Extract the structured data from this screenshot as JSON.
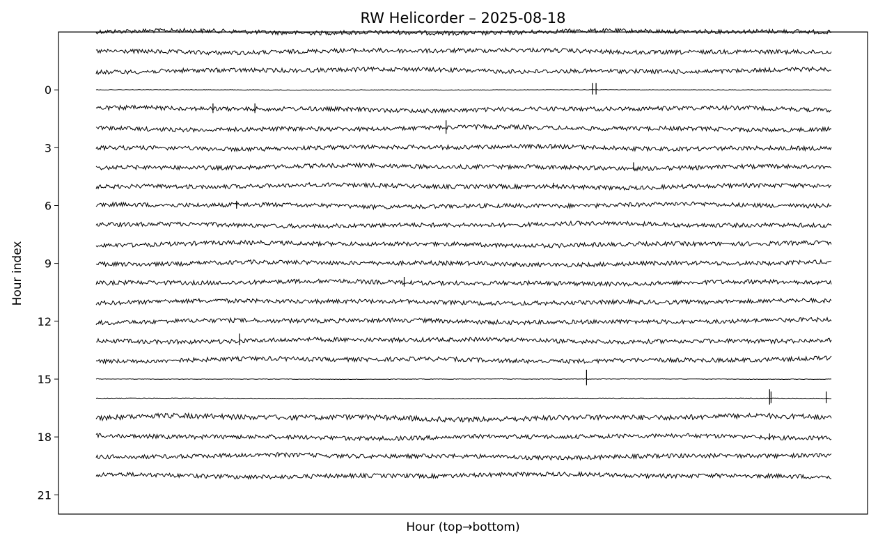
{
  "chart_data": {
    "type": "line",
    "title": "RW Helicorder – 2025-08-18",
    "xlabel": "Hour (top→bottom)",
    "ylabel": "Hour index",
    "ylim": [
      22,
      -3
    ],
    "ytick_values": [
      0,
      3,
      6,
      9,
      12,
      15,
      18,
      21
    ],
    "ytick_labels": [
      "0",
      "3",
      "6",
      "9",
      "12",
      "15",
      "18",
      "21"
    ],
    "x_ticks_shown": false,
    "grid": false,
    "line_color": "#000000",
    "series": [
      {
        "offset": -3,
        "amplitude": 0.25,
        "events": []
      },
      {
        "offset": -2,
        "amplitude": 0.25,
        "events": []
      },
      {
        "offset": -1,
        "amplitude": 0.25,
        "events": []
      },
      {
        "offset": 0,
        "amplitude": 0.03,
        "events": [
          {
            "t": 0.675,
            "size": 0.6
          },
          {
            "t": 0.68,
            "size": 0.6
          }
        ]
      },
      {
        "offset": 1,
        "amplitude": 0.25,
        "events": [
          {
            "t": 0.159,
            "size": 0.5
          },
          {
            "t": 0.216,
            "size": 0.5
          }
        ]
      },
      {
        "offset": 2,
        "amplitude": 0.25,
        "events": [
          {
            "t": 0.476,
            "size": 0.7
          }
        ]
      },
      {
        "offset": 3,
        "amplitude": 0.25,
        "events": []
      },
      {
        "offset": 4,
        "amplitude": 0.25,
        "events": [
          {
            "t": 0.731,
            "size": 0.4
          }
        ]
      },
      {
        "offset": 5,
        "amplitude": 0.25,
        "events": [
          {
            "t": 0.622,
            "size": 0.3
          }
        ]
      },
      {
        "offset": 6,
        "amplitude": 0.25,
        "events": [
          {
            "t": 0.191,
            "size": 0.4
          }
        ]
      },
      {
        "offset": 7,
        "amplitude": 0.25,
        "events": []
      },
      {
        "offset": 8,
        "amplitude": 0.25,
        "events": []
      },
      {
        "offset": 9,
        "amplitude": 0.25,
        "events": []
      },
      {
        "offset": 10,
        "amplitude": 0.25,
        "events": [
          {
            "t": 0.419,
            "size": 0.5
          }
        ]
      },
      {
        "offset": 11,
        "amplitude": 0.25,
        "events": []
      },
      {
        "offset": 12,
        "amplitude": 0.25,
        "events": []
      },
      {
        "offset": 13,
        "amplitude": 0.25,
        "events": [
          {
            "t": 0.195,
            "size": 0.6
          }
        ]
      },
      {
        "offset": 14,
        "amplitude": 0.25,
        "events": []
      },
      {
        "offset": 15,
        "amplitude": 0.03,
        "events": [
          {
            "t": 0.667,
            "size": 0.8
          }
        ]
      },
      {
        "offset": 16,
        "amplitude": 0.03,
        "events": [
          {
            "t": 0.916,
            "size": 0.8
          },
          {
            "t": 0.918,
            "size": 0.6
          },
          {
            "t": 0.993,
            "size": 0.6
          }
        ]
      },
      {
        "offset": 17,
        "amplitude": 0.3,
        "events": []
      },
      {
        "offset": 18,
        "amplitude": 0.25,
        "events": [
          {
            "t": 0.916,
            "size": 0.3
          }
        ]
      },
      {
        "offset": 19,
        "amplitude": 0.25,
        "events": []
      },
      {
        "offset": 20,
        "amplitude": 0.25,
        "events": []
      }
    ]
  }
}
